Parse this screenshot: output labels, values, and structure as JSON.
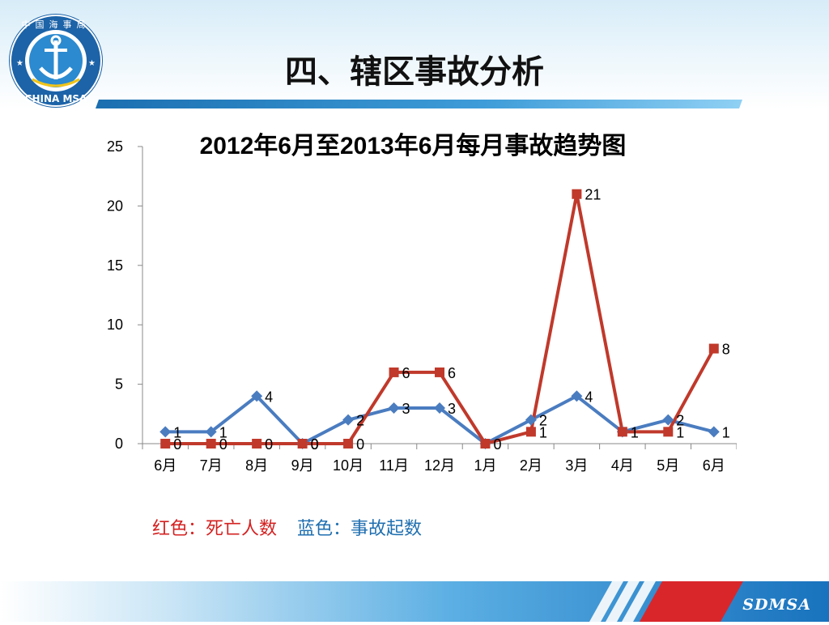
{
  "slide": {
    "title": "四、辖区事故分析"
  },
  "logo": {
    "ring_text": "中国海事局",
    "bottom_text": "CHINA MSA"
  },
  "brand": "SDMSA",
  "legend": {
    "red_label": "红色：死亡人数",
    "blue_label": "蓝色：事故起数"
  },
  "colors": {
    "red": "#c0392b",
    "blue": "#4a7cc0",
    "accent": "#1872bd"
  },
  "chart_data": {
    "type": "line",
    "title": "2012年6月至2013年6月每月事故趋势图",
    "categories": [
      "6月",
      "7月",
      "8月",
      "9月",
      "10月",
      "11月",
      "12月",
      "1月",
      "2月",
      "3月",
      "4月",
      "5月",
      "6月"
    ],
    "ylim": [
      0,
      25
    ],
    "yticks": [
      0,
      5,
      10,
      15,
      20,
      25
    ],
    "xlabel": "",
    "ylabel": "",
    "grid": false,
    "series": [
      {
        "name": "事故起数",
        "color": "#4a7cc0",
        "marker": "diamond",
        "values": [
          1,
          1,
          4,
          0,
          2,
          3,
          3,
          0,
          2,
          4,
          1,
          2,
          1
        ],
        "labels": [
          "1",
          "1",
          "4",
          "0",
          "2",
          "3",
          "3",
          "",
          "2",
          "4",
          "",
          "2",
          "1"
        ]
      },
      {
        "name": "死亡人数",
        "color": "#c0392b",
        "marker": "square",
        "values": [
          0,
          0,
          0,
          0,
          0,
          6,
          6,
          0,
          1,
          21,
          1,
          1,
          8
        ],
        "labels": [
          "0",
          "0",
          "0",
          "0",
          "0",
          "6",
          "6",
          "0",
          "1",
          "21",
          "1",
          "1",
          "8"
        ]
      }
    ]
  }
}
